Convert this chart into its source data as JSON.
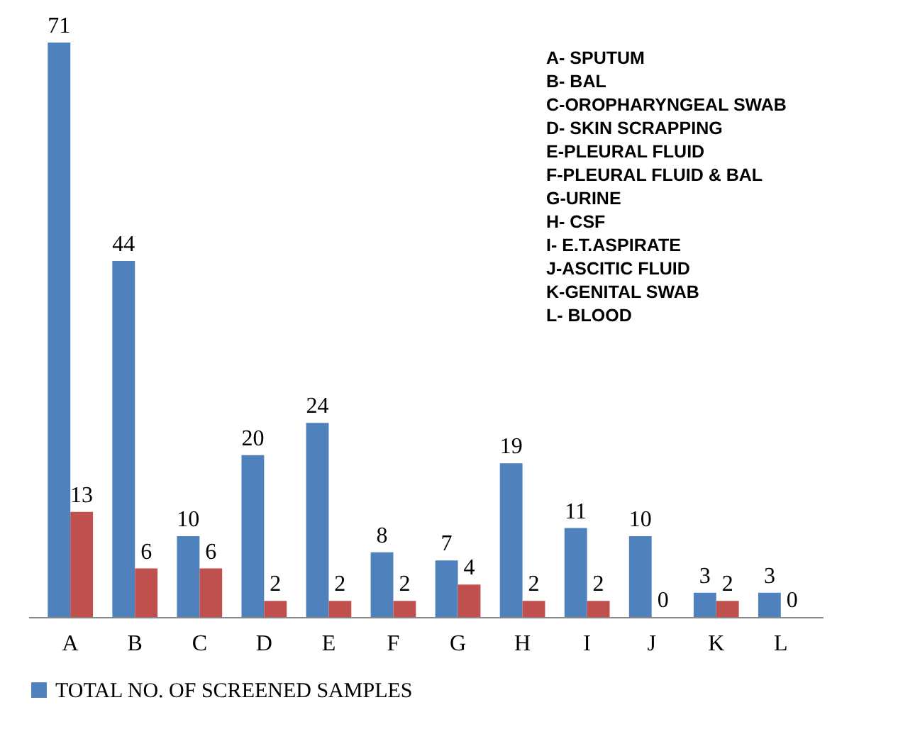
{
  "chart_data": {
    "type": "bar",
    "categories": [
      "A",
      "B",
      "C",
      "D",
      "E",
      "F",
      "G",
      "H",
      "I",
      "J",
      "K",
      "L"
    ],
    "series": [
      {
        "name": "TOTAL NO. OF SCREENED SAMPLES",
        "color": "#4f81bd",
        "values": [
          71,
          44,
          10,
          20,
          24,
          8,
          7,
          19,
          11,
          10,
          3,
          3
        ]
      },
      {
        "color": "#c0504d",
        "values": [
          13,
          6,
          6,
          2,
          2,
          2,
          4,
          2,
          2,
          0,
          2,
          0
        ]
      }
    ],
    "data_labels": true,
    "legend": "bottom",
    "annotations": [
      "A- SPUTUM",
      "B- BAL",
      "C-OROPHARYNGEAL SWAB",
      "D- SKIN SCRAPPING",
      "E-PLEURAL FLUID",
      "F-PLEURAL FLUID & BAL",
      "G-URINE",
      "H- CSF",
      "I- E.T.ASPIRATE",
      "J-ASCITIC FLUID",
      "K-GENITAL SWAB",
      "L- BLOOD"
    ]
  }
}
